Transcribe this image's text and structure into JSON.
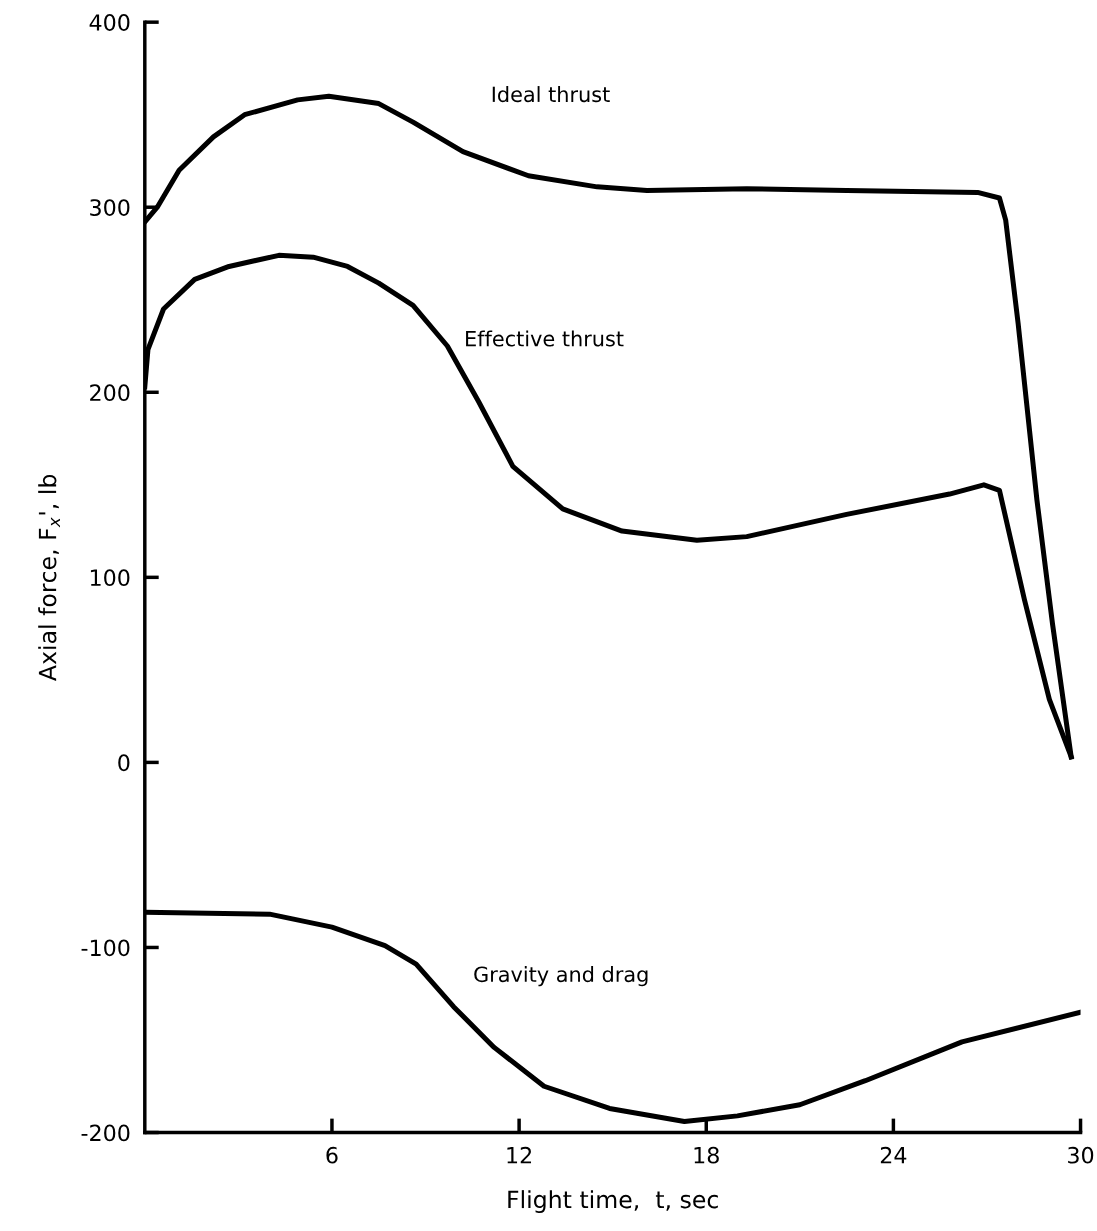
{
  "chart_data": {
    "type": "line",
    "xlabel": "Flight time,  t, sec",
    "ylabel": "Axial force, F$_{x}$', lb",
    "xlim": [
      0,
      30
    ],
    "xticks": [
      6,
      12,
      18,
      24,
      30
    ],
    "ylim": [
      -200,
      400
    ],
    "yticks": [
      -200,
      -100,
      0,
      100,
      200,
      300,
      400
    ],
    "grid": false,
    "legend": false,
    "marker": "none",
    "line_style": "solid",
    "series": [
      {
        "name": "Ideal thrust",
        "color": "#000000",
        "x": [
          0,
          0.4,
          1.1,
          2.2,
          3.2,
          4.9,
          5.9,
          7.5,
          8.6,
          10.2,
          12.3,
          14.5,
          16.1,
          19.3,
          22.5,
          26.7,
          27.4,
          27.6,
          28.0,
          28.6,
          29.1,
          29.7
        ],
        "values": [
          292,
          300,
          320,
          338,
          350,
          358,
          360,
          356,
          346,
          330,
          317,
          311,
          309,
          310,
          309,
          308,
          305,
          293,
          237,
          142,
          75,
          3
        ]
      },
      {
        "name": "Effective thrust",
        "color": "#000000",
        "x": [
          0,
          0.1,
          0.6,
          1.6,
          2.7,
          4.3,
          5.4,
          6.5,
          7.5,
          8.6,
          9.7,
          10.7,
          11.8,
          13.4,
          15.3,
          17.7,
          19.3,
          22.5,
          25.8,
          26.9,
          27.4,
          28.2,
          29.0,
          29.7
        ],
        "values": [
          203,
          223,
          245,
          261,
          268,
          274,
          273,
          268,
          259,
          247,
          225,
          195,
          160,
          137,
          125,
          120,
          122,
          134,
          145,
          150,
          147,
          88,
          34,
          3
        ]
      },
      {
        "name": "Gravity and drag",
        "color": "#000000",
        "x": [
          0,
          4.0,
          6,
          7.7,
          8.7,
          9.9,
          11.2,
          12.8,
          14.9,
          17.3,
          19,
          21,
          23.1,
          26.2,
          30
        ],
        "values": [
          -81,
          -82,
          -89,
          -99,
          -109,
          -132,
          -154,
          -175,
          -187,
          -194,
          -191,
          -185,
          -172,
          -151,
          -135
        ]
      }
    ]
  }
}
